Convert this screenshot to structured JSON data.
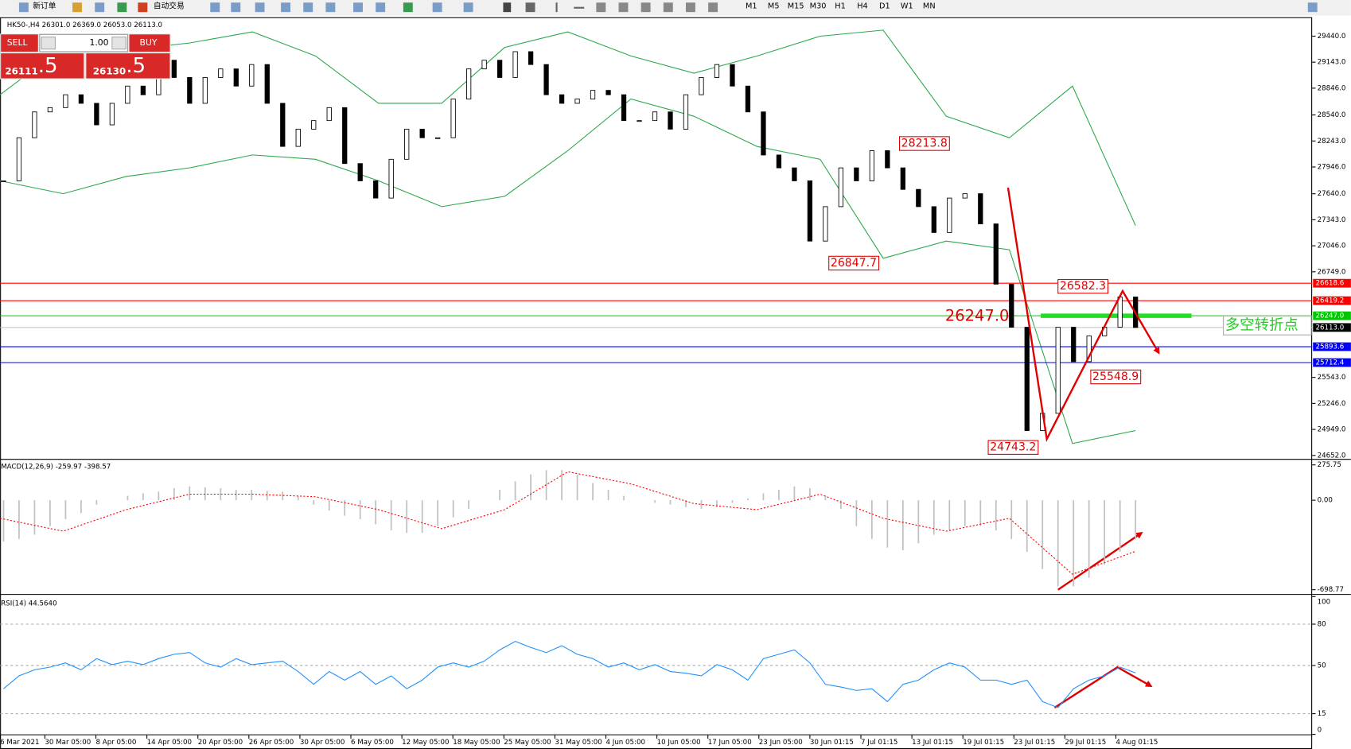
{
  "toolbar": {
    "new_order": "新订单",
    "auto_trading": "自动交易",
    "timeframes": [
      "M1",
      "M5",
      "M15",
      "M30",
      "H1",
      "H4",
      "D1",
      "W1",
      "MN"
    ]
  },
  "order_panel": {
    "sell": "SELL",
    "lot": "1.00",
    "buy": "BUY",
    "sell_price": "26111",
    "sell_price_pips": ".5",
    "buy_price": "26130",
    "buy_price_pips": ".5"
  },
  "chart": {
    "header": "HK50-,H4  26301.0 26369.0 26053.0 26113.0",
    "ylim": [
      24652,
      29440
    ],
    "yticks": [
      {
        "value": 29440,
        "label": "29440.0"
      },
      {
        "value": 29143,
        "label": "29143.0"
      },
      {
        "value": 28846,
        "label": "28846.0"
      },
      {
        "value": 28540,
        "label": "28540.0"
      },
      {
        "value": 28243,
        "label": "28243.0"
      },
      {
        "value": 27946,
        "label": "27946.0"
      },
      {
        "value": 27640,
        "label": "27640.0"
      },
      {
        "value": 27343,
        "label": "27343.0"
      },
      {
        "value": 27046,
        "label": "27046.0"
      },
      {
        "value": 26749,
        "label": "26749.0"
      },
      {
        "value": 25543,
        "label": "25543.0"
      },
      {
        "value": 25246,
        "label": "25246.0"
      },
      {
        "value": 24949,
        "label": "24949.0"
      },
      {
        "value": 24652,
        "label": "24652.0"
      }
    ],
    "levels": [
      {
        "value": 26618.6,
        "label": "26618.6",
        "color": "#ff0000"
      },
      {
        "value": 26419.2,
        "label": "26419.2",
        "color": "#ff0000"
      },
      {
        "value": 26247.0,
        "label": "26247.0",
        "color": "#00c800"
      },
      {
        "value": 26113.0,
        "label": "26113.0",
        "color": "#000000"
      },
      {
        "value": 25893.6,
        "label": "25893.6",
        "color": "#0000ff"
      },
      {
        "value": 25712.4,
        "label": "25712.4",
        "color": "#0000ff"
      }
    ],
    "closes": [
      27788,
      28280,
      28575,
      28624,
      28771,
      28673,
      28427,
      28673,
      28870,
      28771,
      29165,
      28968,
      28673,
      28968,
      29066,
      28870,
      29116,
      28673,
      28181,
      28378,
      28476,
      28624,
      27985,
      27788,
      27591,
      28034,
      28378,
      28280,
      28280,
      28722,
      29066,
      29165,
      28968,
      29263,
      29116,
      28771,
      28673,
      28722,
      28821,
      28771,
      28476,
      28476,
      28575,
      28378,
      28771,
      28968,
      29116,
      28870,
      28575,
      28083,
      27936,
      27788,
      27100,
      27493,
      27936,
      27788,
      28132,
      27936,
      27690,
      27493,
      27198,
      27591,
      27641,
      27296,
      26608,
      26116,
      24936,
      25133,
      26116,
      25723,
      26018,
      26116,
      26461,
      26113
    ],
    "upper_band": [
      28771,
      29312,
      29283,
      29361,
      29489,
      29214,
      28673,
      28673,
      29312,
      29489,
      29214,
      29017,
      29214,
      29440,
      29509,
      28526,
      28280,
      28870,
      27277
    ],
    "lower_band": [
      27788,
      27641,
      27837,
      27936,
      28083,
      28034,
      27788,
      27493,
      27611,
      28132,
      28722,
      28526,
      28181,
      28034,
      26903,
      27100,
      27001,
      24789,
      24936
    ],
    "band_color": "#2aa84a",
    "annotations": [
      {
        "value": 28213.8,
        "label": "28213.8"
      },
      {
        "value": 26847.7,
        "label": "26847.7"
      },
      {
        "value": 26582.3,
        "label": "26582.3"
      },
      {
        "value": 25548.9,
        "label": "25548.9"
      },
      {
        "value": 24743.2,
        "label": "24743.2"
      }
    ],
    "turning_point": {
      "value": 26247.0,
      "label": "26247.0"
    },
    "turning_point_text": "多空转折点",
    "dates": [
      "6 Mar 2021",
      "30 Mar 05:00",
      "8 Apr 05:00",
      "14 Apr 05:00",
      "20 Apr 05:00",
      "26 Apr 05:00",
      "30 Apr 05:00",
      "6 May 05:00",
      "12 May 05:00",
      "18 May 05:00",
      "25 May 05:00",
      "31 May 05:00",
      "4 Jun 05:00",
      "10 Jun 05:00",
      "17 Jun 05:00",
      "23 Jun 05:00",
      "30 Jun 01:15",
      "7 Jul 01:15",
      "13 Jul 01:15",
      "19 Jul 01:15",
      "23 Jul 01:15",
      "29 Jul 01:15",
      "4 Aug 01:15"
    ]
  },
  "macd": {
    "label": "MACD(12,26,9) -259.97 -398.57",
    "ylim": [
      -698.77,
      275.75
    ],
    "yticks": [
      {
        "value": 275.75,
        "label": "275.75"
      },
      {
        "value": 0,
        "label": "0.00"
      },
      {
        "value": -698.77,
        "label": "-698.77"
      }
    ],
    "histogram": [
      -323,
      -302,
      -269,
      -202,
      -148,
      -101,
      -34,
      0,
      34,
      54,
      67,
      94,
      108,
      101,
      94,
      81,
      81,
      74,
      67,
      34,
      -34,
      -81,
      -121,
      -148,
      -188,
      -235,
      -255,
      -255,
      -202,
      -134,
      -67,
      0,
      81,
      148,
      202,
      235,
      235,
      202,
      134,
      81,
      34,
      0,
      -20,
      -34,
      -54,
      -67,
      -54,
      -20,
      13,
      54,
      81,
      108,
      94,
      34,
      -67,
      -202,
      -302,
      -370,
      -390,
      -336,
      -269,
      -235,
      -202,
      -202,
      -235,
      -302,
      -403,
      -538,
      -672,
      -672,
      -605,
      -504,
      -403,
      -302
    ],
    "signal": [
      -141,
      -242,
      -74,
      47,
      47,
      27,
      -74,
      -222,
      -74,
      222,
      128,
      -27,
      -74,
      47,
      -141,
      -242,
      -141,
      -578,
      -399
    ]
  },
  "rsi": {
    "label": "RSI(14) 44.5640",
    "ylim": [
      0,
      100
    ],
    "yticks": [
      100,
      80,
      50,
      15,
      0
    ],
    "values": [
      33.1,
      42.5,
      46.9,
      48.8,
      51.9,
      46.9,
      55,
      50.6,
      53.1,
      50.6,
      55,
      58.1,
      59.4,
      51.9,
      48.8,
      55,
      50.6,
      51.9,
      53.1,
      45.6,
      36.3,
      45.6,
      39.4,
      45.6,
      36.3,
      42.5,
      33.1,
      39.4,
      48.8,
      51.9,
      48.8,
      53.1,
      61.3,
      67.5,
      63.1,
      59.4,
      64.4,
      58.1,
      55,
      48.8,
      51.9,
      46.9,
      50.6,
      45.6,
      44.4,
      42.5,
      50.6,
      46.9,
      39.4,
      55,
      58.1,
      61.3,
      51.9,
      36.3,
      34.4,
      31.9,
      33.1,
      23.8,
      36.3,
      39.4,
      46.9,
      51.9,
      48.8,
      39.4,
      39.4,
      36.3,
      39.4,
      23.8,
      19.4,
      33.1,
      39.4,
      42.5,
      48.8,
      44.6
    ]
  }
}
